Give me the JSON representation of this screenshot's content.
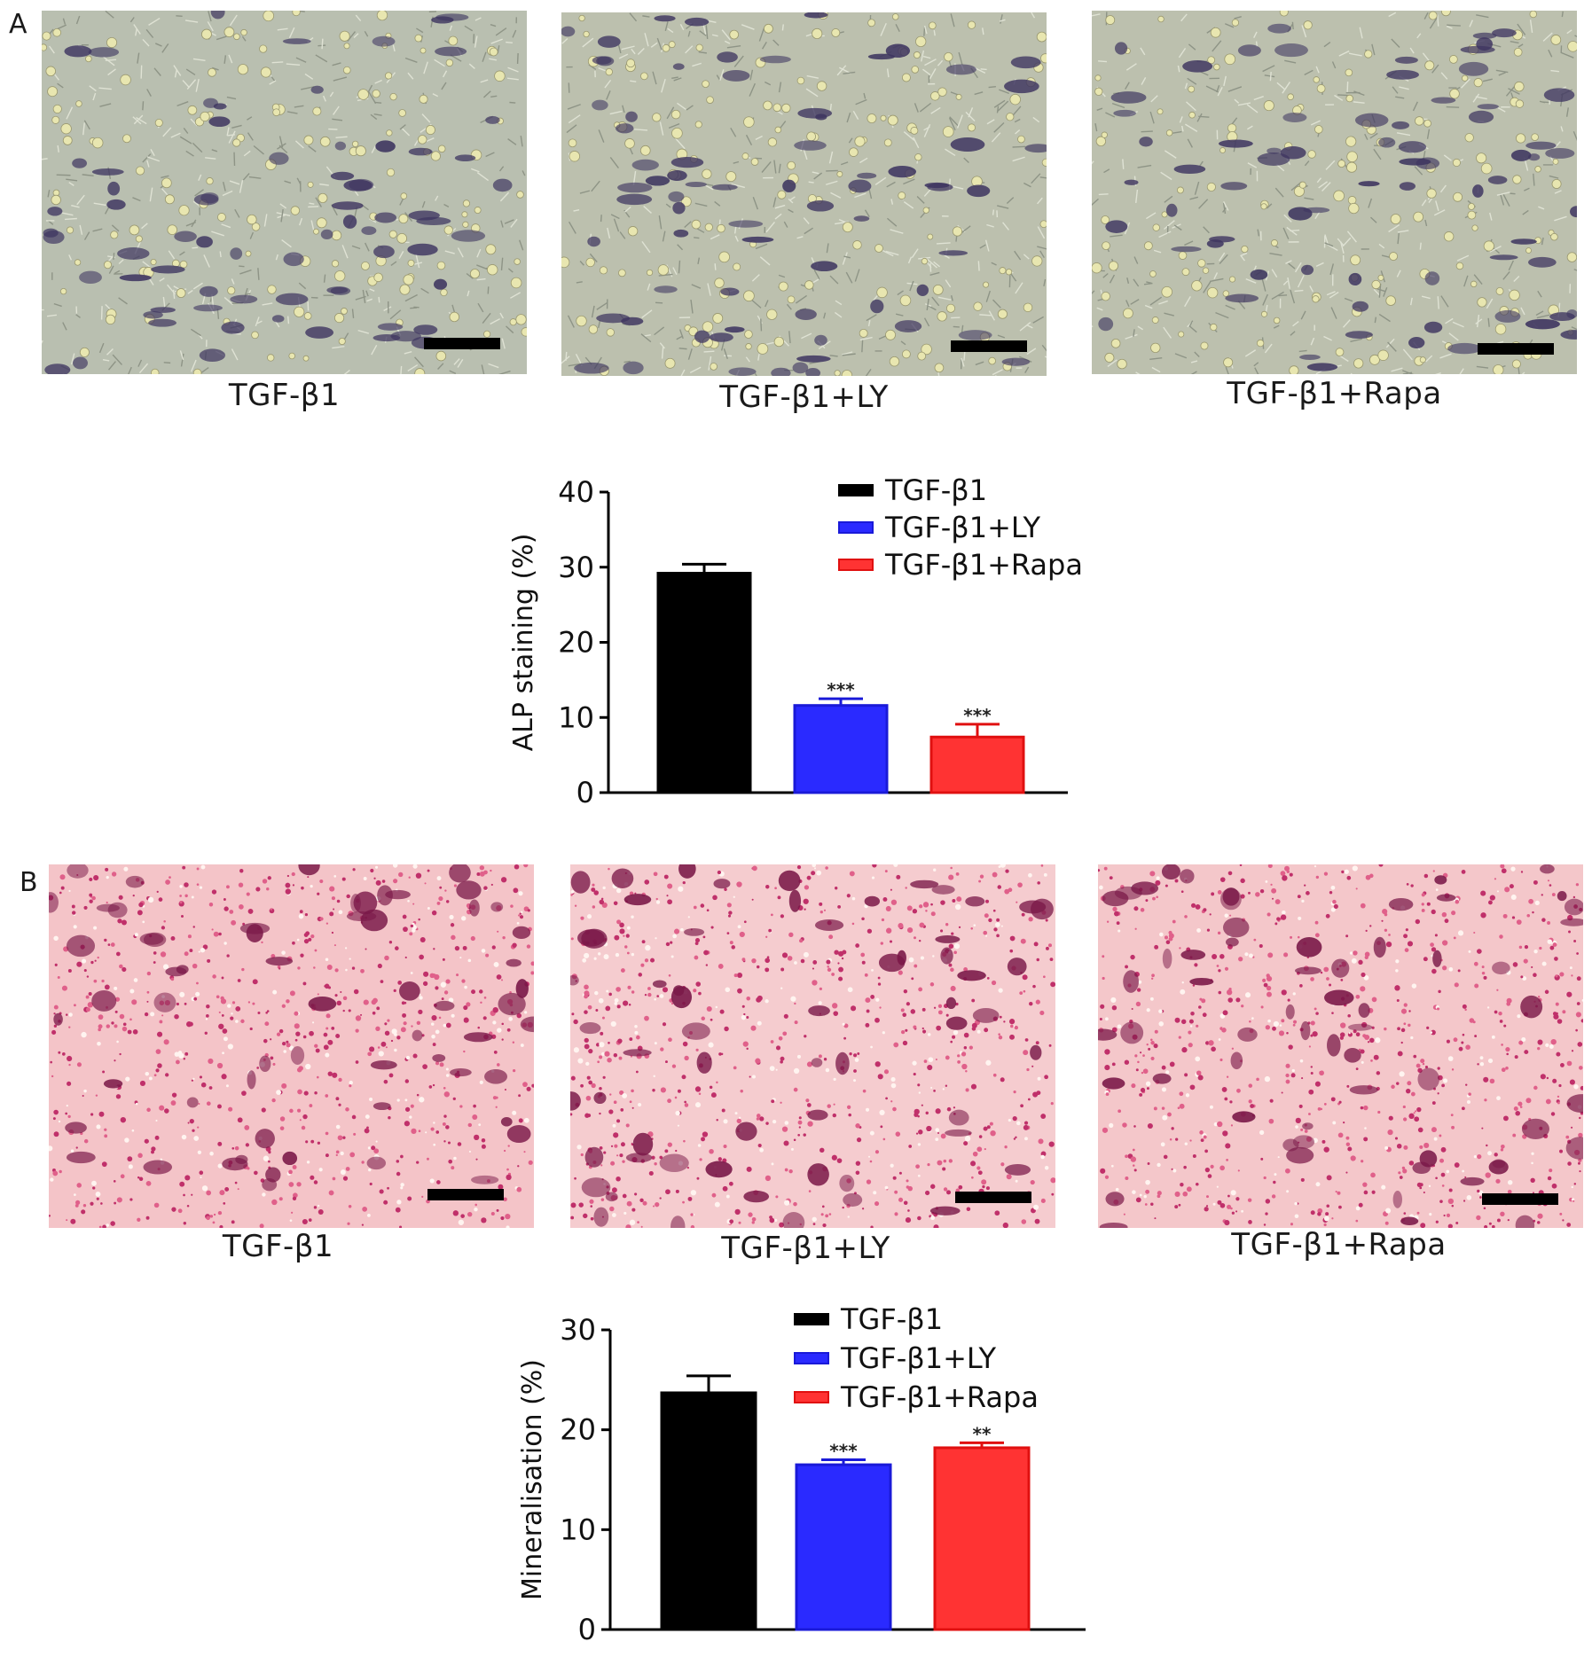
{
  "panel_a": {
    "letter": "A",
    "images": [
      {
        "caption": "TGF-β1",
        "stain": "ALP staining micrograph"
      },
      {
        "caption": "TGF-β1+LY",
        "stain": "ALP staining micrograph"
      },
      {
        "caption": "TGF-β1+Rapa",
        "stain": "ALP staining micrograph"
      }
    ]
  },
  "panel_b": {
    "letter": "B",
    "images": [
      {
        "caption": "TGF-β1",
        "stain": "Alizarin red mineralisation micrograph"
      },
      {
        "caption": "TGF-β1+LY",
        "stain": "Alizarin red mineralisation micrograph"
      },
      {
        "caption": "TGF-β1+Rapa",
        "stain": "Alizarin red mineralisation micrograph"
      }
    ]
  },
  "colors": {
    "black": "#000000",
    "blue": "#2a2aff",
    "red": "#ff3333",
    "blue_edge": "#1a1ad8",
    "red_edge": "#e01010"
  },
  "chart_data": [
    {
      "type": "bar",
      "ylabel": "ALP staining (%)",
      "ylim": [
        0,
        40
      ],
      "yticks": [
        0,
        10,
        20,
        30,
        40
      ],
      "categories": [
        "TGF-β1",
        "TGF-β1+LY",
        "TGF-β1+Rapa"
      ],
      "values": [
        29.2,
        11.6,
        7.4
      ],
      "errors": [
        1.2,
        0.9,
        1.7
      ],
      "significance": [
        "",
        "***",
        "***"
      ],
      "legend": [
        "TGF-β1",
        "TGF-β1+LY",
        "TGF-β1+Rapa"
      ],
      "legend_position": "top-right",
      "grid": false
    },
    {
      "type": "bar",
      "ylabel": "Mineralisation (%)",
      "ylim": [
        0,
        30
      ],
      "yticks": [
        0,
        10,
        20,
        30
      ],
      "categories": [
        "TGF-β1",
        "TGF-β1+LY",
        "TGF-β1+Rapa"
      ],
      "values": [
        23.7,
        16.5,
        18.2
      ],
      "errors": [
        1.7,
        0.5,
        0.5
      ],
      "significance": [
        "",
        "***",
        "**"
      ],
      "legend": [
        "TGF-β1",
        "TGF-β1+LY",
        "TGF-β1+Rapa"
      ],
      "legend_position": "top-right",
      "grid": false
    }
  ]
}
